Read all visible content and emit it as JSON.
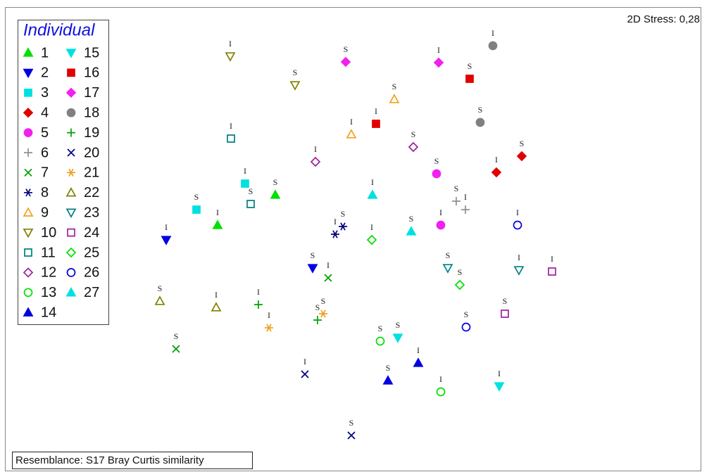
{
  "chart_data": {
    "type": "scatter",
    "legend_title": "Individual",
    "stress_label": "2D Stress: 0,28",
    "resemblance_label": "Resemblance: S17 Bray Curtis similarity",
    "legend": "upper left",
    "xlim": [
      0.7,
      99.7
    ],
    "ylim": [
      0,
      66.1
    ],
    "series": [
      {
        "name": "1",
        "color": "#00e000",
        "marker": "triangle-up",
        "filled": true,
        "labels": [
          "I",
          "S"
        ],
        "x": [
          30.9,
          39.1
        ],
        "y": [
          35.1,
          39.4
        ]
      },
      {
        "name": "2",
        "color": "#0000e0",
        "marker": "triangle-down",
        "filled": true,
        "labels": [
          "I",
          "S"
        ],
        "x": [
          23.6,
          44.4
        ],
        "y": [
          33.0,
          29.0
        ]
      },
      {
        "name": "3",
        "color": "#00e0e0",
        "marker": "square",
        "filled": true,
        "labels": [
          "S",
          "I"
        ],
        "x": [
          27.9,
          34.8
        ],
        "y": [
          37.3,
          41.0
        ]
      },
      {
        "name": "4",
        "color": "#e00000",
        "marker": "diamond",
        "filled": true,
        "labels": [
          "I",
          "S"
        ],
        "x": [
          70.5,
          74.1
        ],
        "y": [
          42.6,
          44.9
        ]
      },
      {
        "name": "5",
        "color": "#f020f0",
        "marker": "circle",
        "filled": true,
        "labels": [
          "S",
          "I"
        ],
        "x": [
          62.0,
          62.6
        ],
        "y": [
          42.4,
          35.1
        ]
      },
      {
        "name": "6",
        "color": "#909090",
        "marker": "plus",
        "filled": false,
        "labels": [
          "S",
          "I"
        ],
        "x": [
          64.8,
          66.1
        ],
        "y": [
          38.5,
          37.3
        ]
      },
      {
        "name": "7",
        "color": "#00a000",
        "marker": "cross",
        "filled": false,
        "labels": [
          "S",
          "I"
        ],
        "x": [
          25.0,
          46.6
        ],
        "y": [
          17.5,
          27.6
        ]
      },
      {
        "name": "8",
        "color": "#000080",
        "marker": "asterisk",
        "filled": false,
        "labels": [
          "I",
          "S"
        ],
        "x": [
          47.6,
          48.7
        ],
        "y": [
          33.8,
          34.9
        ]
      },
      {
        "name": "9",
        "color": "#f0a020",
        "marker": "triangle-up",
        "filled": false,
        "labels": [
          "I",
          "S"
        ],
        "x": [
          49.9,
          56.0
        ],
        "y": [
          48.0,
          53.0
        ]
      },
      {
        "name": "10",
        "color": "#808000",
        "marker": "triangle-down",
        "filled": false,
        "labels": [
          "I",
          "S"
        ],
        "x": [
          32.7,
          41.9
        ],
        "y": [
          59.1,
          55.0
        ]
      },
      {
        "name": "11",
        "color": "#008080",
        "marker": "square",
        "filled": false,
        "labels": [
          "I",
          "S"
        ],
        "x": [
          32.8,
          35.6
        ],
        "y": [
          47.4,
          38.1
        ]
      },
      {
        "name": "12",
        "color": "#a020a0",
        "marker": "diamond",
        "filled": false,
        "labels": [
          "I",
          "S"
        ],
        "x": [
          44.8,
          58.7
        ],
        "y": [
          44.1,
          46.2
        ]
      },
      {
        "name": "13",
        "color": "#00e000",
        "marker": "circle",
        "filled": false,
        "labels": [
          "S",
          "I"
        ],
        "x": [
          54.0,
          62.6
        ],
        "y": [
          18.6,
          11.4
        ]
      },
      {
        "name": "14",
        "color": "#0000e0",
        "marker": "triangle-up",
        "filled": true,
        "labels": [
          "S",
          "I"
        ],
        "x": [
          55.1,
          59.4
        ],
        "y": [
          13.0,
          15.5
        ]
      },
      {
        "name": "15",
        "color": "#00e0e0",
        "marker": "triangle-down",
        "filled": true,
        "labels": [
          "S",
          "I"
        ],
        "x": [
          56.5,
          70.9
        ],
        "y": [
          19.1,
          12.2
        ]
      },
      {
        "name": "16",
        "color": "#e00000",
        "marker": "square",
        "filled": true,
        "labels": [
          "I",
          "S"
        ],
        "x": [
          53.4,
          66.7
        ],
        "y": [
          49.5,
          55.9
        ]
      },
      {
        "name": "17",
        "color": "#f020f0",
        "marker": "diamond",
        "filled": true,
        "labels": [
          "S",
          "I"
        ],
        "x": [
          49.1,
          62.3
        ],
        "y": [
          58.3,
          58.2
        ]
      },
      {
        "name": "18",
        "color": "#808080",
        "marker": "circle",
        "filled": true,
        "labels": [
          "I",
          "S"
        ],
        "x": [
          70.0,
          68.2
        ],
        "y": [
          60.6,
          49.7
        ]
      },
      {
        "name": "19",
        "color": "#00a000",
        "marker": "plus",
        "filled": false,
        "labels": [
          "I",
          "S"
        ],
        "x": [
          36.7,
          45.1
        ],
        "y": [
          23.8,
          21.6
        ]
      },
      {
        "name": "20",
        "color": "#000080",
        "marker": "cross",
        "filled": false,
        "labels": [
          "I",
          "S"
        ],
        "x": [
          43.3,
          49.9
        ],
        "y": [
          13.9,
          5.2
        ]
      },
      {
        "name": "21",
        "color": "#f0a020",
        "marker": "asterisk",
        "filled": false,
        "labels": [
          "I",
          "S"
        ],
        "x": [
          38.2,
          45.9
        ],
        "y": [
          20.5,
          22.5
        ]
      },
      {
        "name": "22",
        "color": "#808000",
        "marker": "triangle-up",
        "filled": false,
        "labels": [
          "S",
          "I"
        ],
        "x": [
          22.7,
          30.7
        ],
        "y": [
          24.3,
          23.4
        ]
      },
      {
        "name": "23",
        "color": "#008080",
        "marker": "triangle-down",
        "filled": false,
        "labels": [
          "S",
          "I"
        ],
        "x": [
          63.6,
          73.7
        ],
        "y": [
          29.0,
          28.7
        ]
      },
      {
        "name": "24",
        "color": "#a020a0",
        "marker": "square",
        "filled": false,
        "labels": [
          "I",
          "S"
        ],
        "x": [
          78.4,
          71.7
        ],
        "y": [
          28.5,
          22.5
        ]
      },
      {
        "name": "25",
        "color": "#00e000",
        "marker": "diamond",
        "filled": false,
        "labels": [
          "I",
          "S"
        ],
        "x": [
          52.8,
          65.3
        ],
        "y": [
          33.0,
          26.6
        ]
      },
      {
        "name": "26",
        "color": "#0000e0",
        "marker": "circle",
        "filled": false,
        "labels": [
          "I",
          "S"
        ],
        "x": [
          73.5,
          66.2
        ],
        "y": [
          35.1,
          20.6
        ]
      },
      {
        "name": "27",
        "color": "#00e0e0",
        "marker": "triangle-up",
        "filled": true,
        "labels": [
          "I",
          "S"
        ],
        "x": [
          52.9,
          58.4
        ],
        "y": [
          39.4,
          34.2
        ]
      }
    ]
  }
}
